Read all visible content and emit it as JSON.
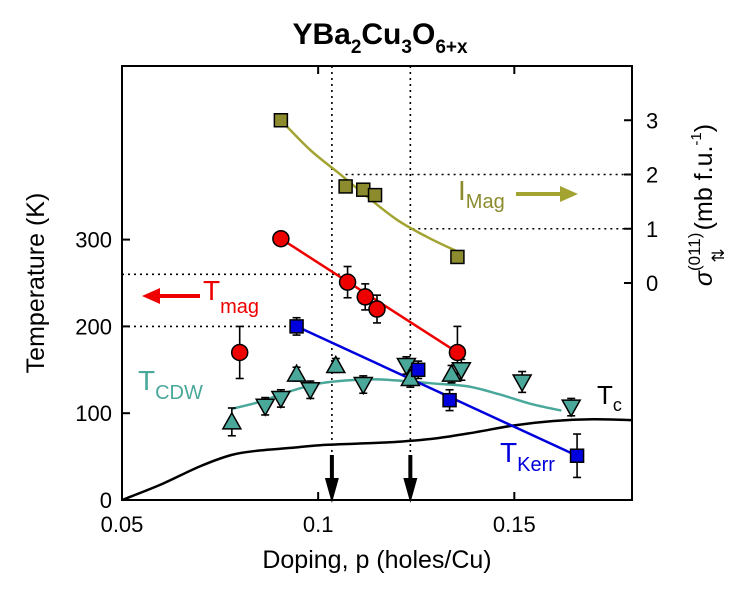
{
  "chart_data": {
    "type": "scatter",
    "title": "YBa2Cu3O6+x",
    "title_parts": {
      "base": "YBa",
      "s1": "2",
      "mid1": "Cu",
      "s2": "3",
      "mid2": "O",
      "s3": "6+x"
    },
    "xlabel": "Doping, p (holes/Cu)",
    "ylabel": "Temperature (K)",
    "y2label": {
      "sigma": "σ",
      "sup": "(011)",
      "sub": "⇅",
      "units": "(mb f.u.",
      "exp": "-1",
      "close": ")"
    },
    "xlim": [
      0.05,
      0.18
    ],
    "ylim": [
      0,
      500
    ],
    "x_ticks": [
      {
        "v": 0.05,
        "label": "0.05"
      },
      {
        "v": 0.1,
        "label": "0.1"
      },
      {
        "v": 0.15,
        "label": "0.15"
      }
    ],
    "y_ticks": [
      {
        "v": 0,
        "label": "0"
      },
      {
        "v": 100,
        "label": "100"
      },
      {
        "v": 200,
        "label": "200"
      },
      {
        "v": 300,
        "label": "300"
      }
    ],
    "y2_ticks": [
      {
        "v": 0,
        "label": "0"
      },
      {
        "v": 1,
        "label": "1"
      },
      {
        "v": 2,
        "label": "2"
      },
      {
        "v": 3,
        "label": "3"
      }
    ],
    "y2_offset": 250,
    "y2_scale": 62.5,
    "colors": {
      "mag_sq": "#8c8c2e",
      "mag_line": "#a3a332",
      "t_mag": "#ee0000",
      "kerr": "#0000dd",
      "cdw": "#4aa89a",
      "tc": "#000000"
    },
    "series": [
      {
        "name": "I_Mag",
        "axis": "right",
        "marker": "square",
        "x": [
          0.0905,
          0.107,
          0.1115,
          0.1145,
          0.1355
        ],
        "y": [
          3.0,
          1.78,
          1.72,
          1.62,
          0.48
        ],
        "fit_x": [
          0.0905,
          0.098,
          0.105,
          0.112,
          0.12,
          0.128,
          0.1355
        ],
        "fit_y": [
          3.0,
          2.45,
          2.04,
          1.62,
          1.17,
          0.84,
          0.58
        ]
      },
      {
        "name": "T_mag",
        "axis": "left",
        "marker": "circle",
        "x": [
          0.0905,
          0.1075,
          0.112,
          0.115,
          0.1355,
          0.08
        ],
        "y": [
          301,
          251,
          234,
          220,
          170,
          170
        ],
        "err": [
          0,
          18,
          15,
          16,
          30,
          30
        ],
        "line_x": [
          0.0905,
          0.1355
        ],
        "line_y": [
          301,
          170
        ]
      },
      {
        "name": "T_Kerr",
        "axis": "left",
        "marker": "square",
        "x": [
          0.0945,
          0.1255,
          0.1335,
          0.166
        ],
        "y": [
          200,
          150,
          115,
          51
        ],
        "err": [
          10,
          10,
          12,
          25
        ],
        "line_x": [
          0.0945,
          0.166
        ],
        "line_y": [
          200,
          51
        ]
      },
      {
        "name": "T_CDW",
        "axis": "left",
        "marker": "triangle",
        "up_x": [
          0.078,
          0.0945,
          0.1045,
          0.1235,
          0.134
        ],
        "up_y": [
          90,
          145,
          155,
          140,
          145
        ],
        "up_err": [
          16,
          8,
          8,
          10,
          10
        ],
        "down_x": [
          0.0865,
          0.0905,
          0.098,
          0.1115,
          0.1225,
          0.1365,
          0.152,
          0.1645
        ],
        "down_y": [
          108,
          117,
          127,
          133,
          155,
          150,
          136,
          107
        ],
        "down_err": [
          10,
          10,
          10,
          10,
          10,
          12,
          12,
          10
        ],
        "fit_x": [
          0.078,
          0.085,
          0.092,
          0.1,
          0.108,
          0.115,
          0.122,
          0.13,
          0.138,
          0.146,
          0.154,
          0.162
        ],
        "fit_y": [
          105,
          113,
          124,
          134,
          138,
          139,
          137,
          134,
          131,
          122,
          111,
          103
        ]
      },
      {
        "name": "T_c",
        "axis": "left",
        "marker": "none",
        "x": [
          0.05,
          0.06,
          0.07,
          0.078,
          0.085,
          0.093,
          0.1,
          0.11,
          0.12,
          0.13,
          0.14,
          0.15,
          0.16,
          0.17,
          0.18
        ],
        "y": [
          0,
          18,
          39,
          52,
          57,
          60,
          63,
          65,
          67,
          71,
          78,
          86,
          91,
          93,
          92
        ]
      }
    ],
    "ref_lines": {
      "vertical_x": [
        0.1035,
        0.1235
      ],
      "arrows_x": [
        0.1035,
        0.1235
      ],
      "h_left": [
        {
          "y": 260,
          "x_end": 0.1055
        },
        {
          "y": 200,
          "x_end": 0.0955
        }
      ],
      "h_right": [
        {
          "y2": 2,
          "x_start": 0.107
        },
        {
          "y2": 1,
          "x_start": 0.124
        }
      ]
    },
    "annotations": {
      "i_mag": "I",
      "i_mag_sub": "Mag",
      "t_mag": "T",
      "t_mag_sub": "mag",
      "t_cdw": "T",
      "t_cdw_sub": "CDW",
      "t_kerr": "T",
      "t_kerr_sub": "Kerr",
      "t_c": "T",
      "t_c_sub": "c"
    }
  }
}
